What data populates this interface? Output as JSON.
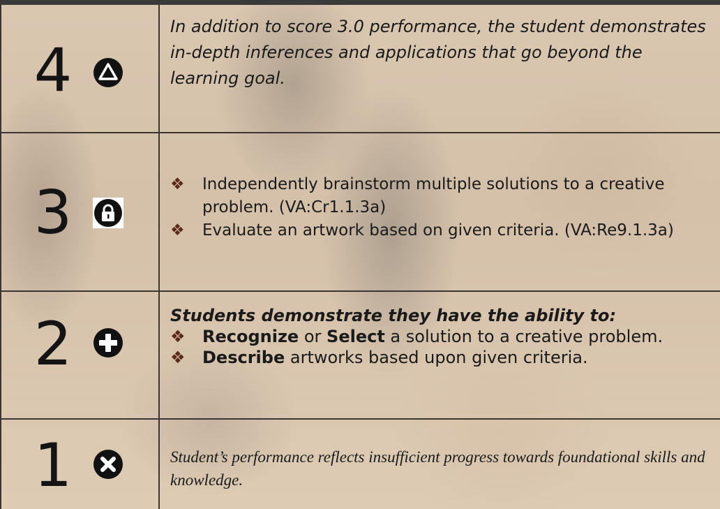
{
  "rows": [
    {
      "score": "4",
      "text": "In addition to score 3.0 performance, the student demonstrates in-depth inferences and applications that go beyond the learning goal."
    },
    {
      "score": "3",
      "bullets": [
        "Independently brainstorm multiple solutions to a creative problem. (VA:Cr1.1.3a)",
        "Evaluate an artwork based on given criteria. (VA:Re9.1.3a)"
      ]
    },
    {
      "score": "2",
      "heading": "Students demonstrate they have the ability to:",
      "bullets": [
        [
          "Recognize",
          " or ",
          "Select",
          " a solution to a creative problem."
        ],
        [
          "Describe",
          " artworks based upon given criteria."
        ]
      ]
    },
    {
      "score": "1",
      "text": "Student’s performance reflects insufficient progress towards foundational skills and knowledge."
    }
  ]
}
